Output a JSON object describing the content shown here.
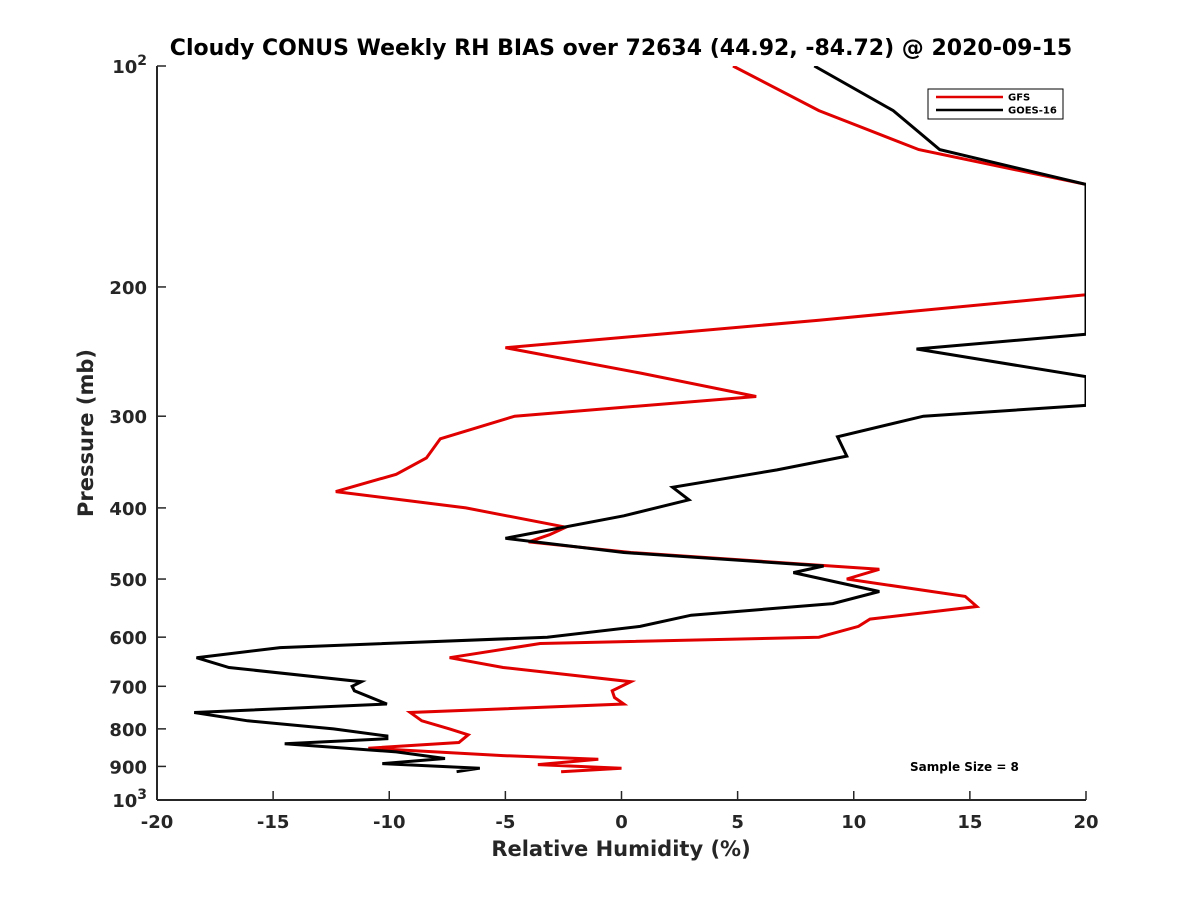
{
  "chart_data": {
    "type": "line",
    "title": "Cloudy CONUS Weekly RH BIAS over 72634 (44.92, -84.72) @ 2020-09-15",
    "xlabel": "Relative Humidity (%)",
    "ylabel": "Pressure (mb)",
    "xlim": [
      -20,
      20
    ],
    "ylim": [
      100,
      1000
    ],
    "y_scale": "log",
    "y_reversed": true,
    "grid": false,
    "legend_position": "top-right",
    "x_ticks": [
      "-20",
      "-15",
      "-10",
      "-5",
      "0",
      "5",
      "10",
      "15",
      "20"
    ],
    "y_ticks": [
      {
        "value": 100,
        "base": "10",
        "exp": "2"
      },
      {
        "value": 200,
        "label": "200"
      },
      {
        "value": 300,
        "label": "300"
      },
      {
        "value": 400,
        "label": "400"
      },
      {
        "value": 500,
        "label": "500"
      },
      {
        "value": 600,
        "label": "600"
      },
      {
        "value": 700,
        "label": "700"
      },
      {
        "value": 800,
        "label": "800"
      },
      {
        "value": 900,
        "label": "900"
      },
      {
        "value": 1000,
        "base": "10",
        "exp": "3"
      }
    ],
    "annotation": "Sample Size = 8",
    "series": [
      {
        "name": "GFS",
        "color": "#e00000",
        "points": [
          [
            4.8,
            100
          ],
          [
            8.5,
            115
          ],
          [
            12.8,
            130
          ],
          [
            20.0,
            145
          ],
          [
            20.0,
            205
          ],
          [
            8.5,
            222
          ],
          [
            -5.0,
            242
          ],
          [
            0.8,
            262
          ],
          [
            5.8,
            282
          ],
          [
            -4.6,
            300
          ],
          [
            -7.8,
            322
          ],
          [
            -8.4,
            342
          ],
          [
            -9.7,
            360
          ],
          [
            -12.3,
            380
          ],
          [
            -6.7,
            400
          ],
          [
            -2.4,
            425
          ],
          [
            -3.1,
            435
          ],
          [
            -4.0,
            445
          ],
          [
            0.4,
            460
          ],
          [
            11.1,
            485
          ],
          [
            9.7,
            500
          ],
          [
            14.8,
            528
          ],
          [
            15.3,
            545
          ],
          [
            10.7,
            567
          ],
          [
            10.2,
            580
          ],
          [
            8.5,
            600
          ],
          [
            -3.5,
            612
          ],
          [
            -7.4,
            640
          ],
          [
            -5.1,
            660
          ],
          [
            0.4,
            690
          ],
          [
            -0.4,
            710
          ],
          [
            -0.3,
            725
          ],
          [
            0.1,
            740
          ],
          [
            -9.1,
            760
          ],
          [
            -8.6,
            780
          ],
          [
            -7.4,
            800
          ],
          [
            -6.6,
            815
          ],
          [
            -7.0,
            835
          ],
          [
            -10.9,
            850
          ],
          [
            -5.1,
            870
          ],
          [
            -1.0,
            880
          ],
          [
            -3.6,
            895
          ],
          [
            0.0,
            905
          ],
          [
            -2.6,
            915
          ]
        ]
      },
      {
        "name": "GOES-16",
        "color": "#000000",
        "points": [
          [
            8.3,
            100
          ],
          [
            11.7,
            115
          ],
          [
            13.7,
            130
          ],
          [
            20.0,
            145
          ],
          [
            20.0,
            232
          ],
          [
            12.7,
            243
          ],
          [
            20.0,
            265
          ],
          [
            20.0,
            290
          ],
          [
            13.0,
            300
          ],
          [
            9.3,
            320
          ],
          [
            9.7,
            340
          ],
          [
            6.7,
            355
          ],
          [
            2.2,
            375
          ],
          [
            2.9,
            390
          ],
          [
            0.1,
            410
          ],
          [
            -5.0,
            440
          ],
          [
            0.1,
            460
          ],
          [
            8.7,
            480
          ],
          [
            7.4,
            490
          ],
          [
            11.1,
            520
          ],
          [
            9.1,
            540
          ],
          [
            3.0,
            560
          ],
          [
            0.8,
            580
          ],
          [
            -3.2,
            600
          ],
          [
            -14.7,
            620
          ],
          [
            -18.3,
            640
          ],
          [
            -16.9,
            660
          ],
          [
            -11.2,
            690
          ],
          [
            -11.6,
            700
          ],
          [
            -11.5,
            710
          ],
          [
            -10.1,
            740
          ],
          [
            -18.4,
            760
          ],
          [
            -16.1,
            780
          ],
          [
            -12.4,
            800
          ],
          [
            -10.1,
            818
          ],
          [
            -10.1,
            825
          ],
          [
            -14.5,
            838
          ],
          [
            -9.7,
            860
          ],
          [
            -7.6,
            878
          ],
          [
            -10.3,
            892
          ],
          [
            -6.1,
            905
          ],
          [
            -7.1,
            915
          ]
        ]
      }
    ]
  }
}
